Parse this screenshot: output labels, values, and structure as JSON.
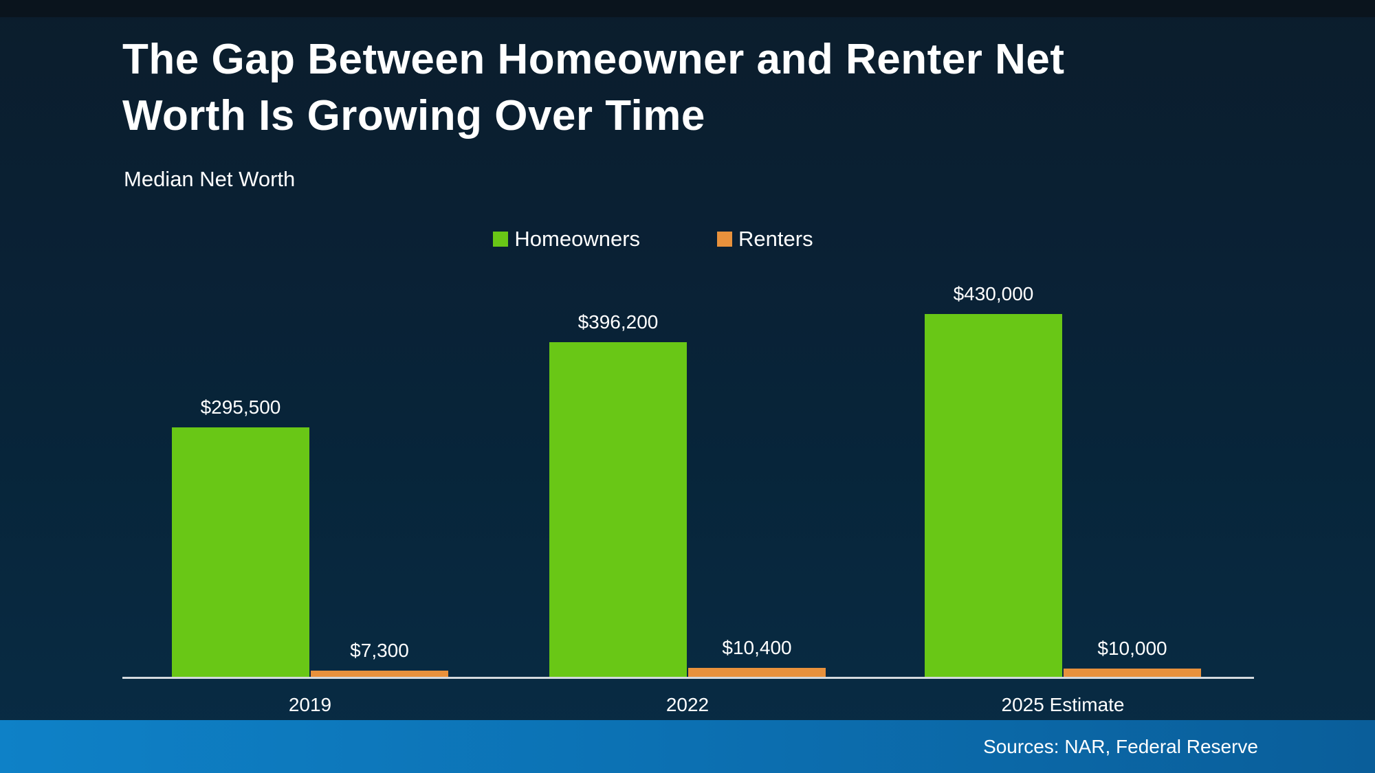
{
  "slide": {
    "title": "The Gap Between Homeowner and Renter Net Worth Is Growing Over Time",
    "subtitle": "Median Net Worth",
    "sources": "Sources: NAR, Federal Reserve"
  },
  "colors": {
    "homeowners": "#69C716",
    "renters": "#E8913C",
    "axis_line": "#D4DADF",
    "text": "#FFFFFF",
    "background_top": "#0A1420",
    "background_bottom": "#092C45",
    "footer_left": "#0E81C7",
    "footer_right": "#0A5E9A"
  },
  "chart_data": {
    "type": "bar",
    "title": "The Gap Between Homeowner and Renter Net Worth Is Growing Over Time",
    "subtitle": "Median Net Worth",
    "categories": [
      "2019",
      "2022",
      "2025 Estimate"
    ],
    "series": [
      {
        "name": "Homeowners",
        "color": "#69C716",
        "values": [
          295500,
          396200,
          430000
        ],
        "labels": [
          "$295,500",
          "$396,200",
          "$430,000"
        ]
      },
      {
        "name": "Renters",
        "color": "#E8913C",
        "values": [
          7300,
          10400,
          10000
        ],
        "labels": [
          "$7,300",
          "$10,400",
          "$10,000"
        ]
      }
    ],
    "xlabel": "",
    "ylabel": "Median Net Worth ($)",
    "ylim": [
      0,
      450000
    ],
    "grid": false,
    "legend_position": "top-center",
    "value_labels_shown": true,
    "annotations": [
      "Sources: NAR, Federal Reserve"
    ]
  }
}
